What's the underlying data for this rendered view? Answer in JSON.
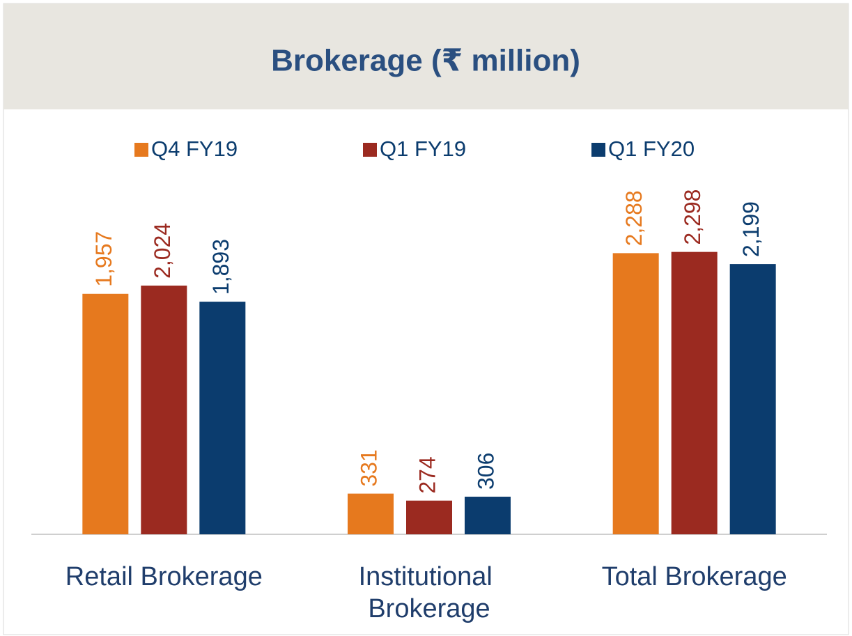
{
  "chart_data": {
    "type": "bar",
    "title": "Brokerage (₹ million)",
    "categories": [
      "Retail Brokerage",
      "Institutional Brokerage",
      "Total Brokerage"
    ],
    "series": [
      {
        "name": "Q4 FY19",
        "color": "#e6791e",
        "values": [
          1957,
          331,
          2288
        ],
        "value_labels": [
          "1,957",
          "331",
          "2,288"
        ]
      },
      {
        "name": "Q1 FY19",
        "color": "#9b2a20",
        "values": [
          2024,
          274,
          2298
        ],
        "value_labels": [
          "2,024",
          "274",
          "2,298"
        ]
      },
      {
        "name": "Q1 FY20",
        "color": "#0b3c6e",
        "values": [
          1893,
          306,
          2199
        ],
        "value_labels": [
          "1,893",
          "306",
          "2,199"
        ]
      }
    ],
    "ylim": [
      0,
      2500
    ]
  }
}
